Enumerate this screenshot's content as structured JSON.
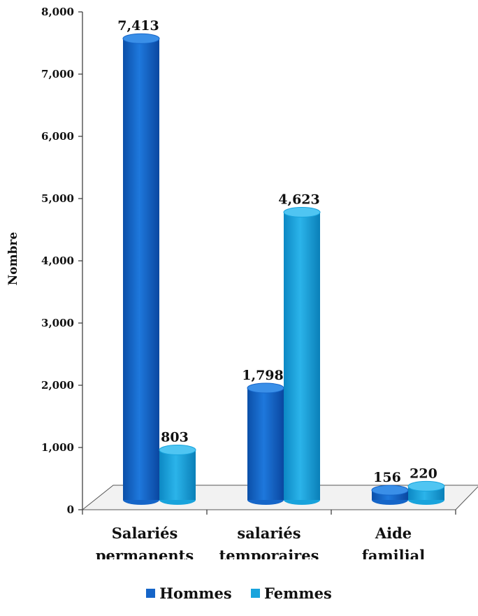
{
  "colors": {
    "hommes": "#1565C8",
    "femmes": "#18A3DC"
  },
  "chart_data": {
    "type": "bar",
    "categories": [
      "Salariés permanents",
      "salariés temporaires",
      "Aide familial"
    ],
    "category_lines": [
      [
        "Salariés",
        "permanents"
      ],
      [
        "salariés",
        "temporaires"
      ],
      [
        "Aide",
        "familial"
      ]
    ],
    "series": [
      {
        "name": "Hommes",
        "values": [
          7413,
          1798,
          156
        ],
        "labels": [
          "7,413",
          "1,798",
          "156"
        ]
      },
      {
        "name": "Femmes",
        "values": [
          803,
          4623,
          220
        ],
        "labels": [
          "803",
          "4,623",
          "220"
        ]
      }
    ],
    "title": "",
    "xlabel": "",
    "ylabel": "Nombre",
    "ylim": [
      0,
      8000
    ],
    "yticks": [
      "0",
      "1,000",
      "2,000",
      "3,000",
      "4,000",
      "5,000",
      "6,000",
      "7,000",
      "8,000"
    ],
    "legend_position": "bottom",
    "grid": false
  }
}
